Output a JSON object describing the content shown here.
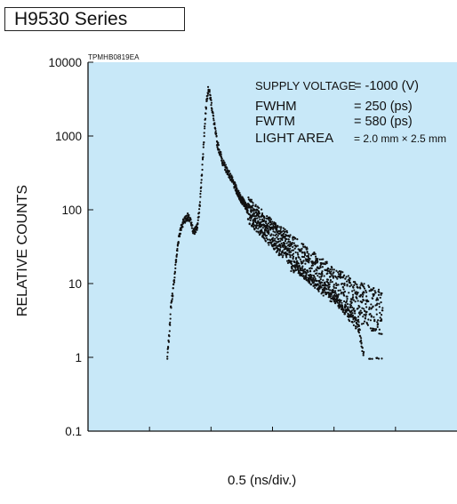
{
  "header": {
    "series_label": "H9530 Series"
  },
  "figure_code": "TPMHB0819EA",
  "chart_data": {
    "type": "scatter",
    "ylabel": "RELATIVE COUNTS",
    "xlabel": "0.5 (ns/div.)",
    "yscale": "log",
    "ylim": [
      0.1,
      10000
    ],
    "ytick_labels": [
      "0.1",
      "1",
      "10",
      "100",
      "1000",
      "10000"
    ],
    "xlim": [
      0,
      6
    ],
    "xunit_note": "x in divisions of 0.5 ns",
    "grid": false,
    "plot_background": "#c8e8f8",
    "point_color": "#111111",
    "annotations": [
      {
        "key": "SUPPLY VOLTAGE",
        "value": "= -1000 (V)"
      },
      {
        "key": "FWHM",
        "value": "= 250 (ps)"
      },
      {
        "key": "FWTM",
        "value": "= 580 (ps)"
      },
      {
        "key": "LIGHT AREA",
        "value": "= 2.0 mm × 2.5 mm"
      }
    ],
    "series": [
      {
        "profile": [
          [
            1.29,
            1
          ],
          [
            1.32,
            2
          ],
          [
            1.35,
            5
          ],
          [
            1.39,
            9
          ],
          [
            1.43,
            20
          ],
          [
            1.48,
            45
          ],
          [
            1.55,
            70
          ],
          [
            1.62,
            80
          ],
          [
            1.66,
            72
          ],
          [
            1.7,
            55
          ],
          [
            1.73,
            50
          ],
          [
            1.78,
            60
          ],
          [
            1.82,
            120
          ],
          [
            1.86,
            400
          ],
          [
            1.9,
            1500
          ],
          [
            1.93,
            3200
          ],
          [
            1.96,
            4500
          ],
          [
            2.0,
            3000
          ],
          [
            2.05,
            1500
          ],
          [
            2.1,
            800
          ],
          [
            2.2,
            420
          ],
          [
            2.3,
            300
          ],
          [
            2.45,
            160
          ],
          [
            2.6,
            100
          ],
          [
            2.8,
            70
          ],
          [
            3.0,
            47
          ],
          [
            3.3,
            28
          ],
          [
            3.6,
            17
          ],
          [
            3.9,
            11
          ],
          [
            4.2,
            7
          ],
          [
            4.5,
            5
          ],
          [
            4.79,
            4
          ]
        ],
        "noise_floor": [
          [
            3.4,
            20
          ],
          [
            3.7,
            12
          ],
          [
            4.0,
            8
          ],
          [
            4.2,
            5
          ],
          [
            4.4,
            3
          ],
          [
            4.5,
            1
          ]
        ]
      }
    ]
  }
}
